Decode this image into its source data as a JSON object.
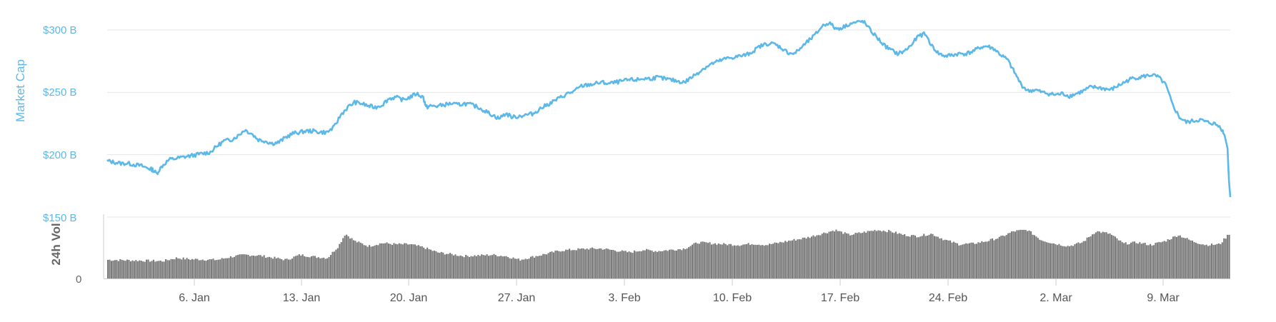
{
  "chart_data": [
    {
      "type": "line",
      "ylabel": "Market Cap",
      "y_ticks": [
        "$300 B",
        "$250 B",
        "$200 B",
        "$150 B"
      ],
      "y_tick_values": [
        300,
        250,
        200,
        150
      ],
      "ylim": [
        150,
        310
      ],
      "x_ticks": [
        "6. Jan",
        "13. Jan",
        "20. Jan",
        "27. Jan",
        "3. Feb",
        "10. Feb",
        "17. Feb",
        "24. Feb",
        "2. Mar",
        "9. Mar"
      ],
      "x_domain_days": [
        0,
        71
      ],
      "x_tick_days": [
        5,
        12,
        19,
        26,
        33,
        40,
        47,
        54,
        61,
        68
      ],
      "grid": true,
      "color": "#5bb8e8",
      "series": [
        {
          "points": [
            [
              0.0,
              195
            ],
            [
              0.5,
              194
            ],
            [
              1.0,
              193
            ],
            [
              1.5,
              193
            ],
            [
              2.0,
              192
            ],
            [
              2.5,
              191
            ],
            [
              3.0,
              189
            ],
            [
              3.3,
              188
            ],
            [
              3.6,
              185
            ],
            [
              4.0,
              191
            ],
            [
              4.5,
              196
            ],
            [
              5.0,
              197
            ],
            [
              5.5,
              198
            ],
            [
              6.0,
              199
            ],
            [
              6.5,
              200
            ],
            [
              7.0,
              201
            ],
            [
              7.5,
              202
            ],
            [
              8.0,
              207
            ],
            [
              8.5,
              211
            ],
            [
              9.0,
              212
            ],
            [
              9.5,
              215
            ],
            [
              10.0,
              220
            ],
            [
              10.5,
              217
            ],
            [
              11.0,
              212
            ],
            [
              11.5,
              211
            ],
            [
              12.0,
              209
            ],
            [
              12.5,
              210
            ],
            [
              13.0,
              214
            ],
            [
              13.5,
              217
            ],
            [
              14.0,
              218
            ],
            [
              14.5,
              219
            ],
            [
              15.0,
              219
            ],
            [
              15.5,
              218
            ],
            [
              16.0,
              218
            ],
            [
              16.5,
              222
            ],
            [
              17.0,
              232
            ],
            [
              17.5,
              238
            ],
            [
              18.0,
              242
            ],
            [
              18.5,
              241
            ],
            [
              19.0,
              239
            ],
            [
              19.5,
              238
            ],
            [
              20.0,
              240
            ],
            [
              20.5,
              245
            ],
            [
              21.0,
              246
            ],
            [
              21.5,
              244
            ],
            [
              22.0,
              246
            ],
            [
              22.5,
              249
            ],
            [
              23.0,
              246
            ],
            [
              23.2,
              238
            ],
            [
              23.5,
              239
            ],
            [
              24.0,
              239
            ],
            [
              24.5,
              240
            ],
            [
              25.0,
              241
            ],
            [
              25.5,
              240
            ],
            [
              26.0,
              241
            ],
            [
              26.5,
              240
            ],
            [
              27.0,
              238
            ],
            [
              27.5,
              235
            ],
            [
              28.0,
              232
            ],
            [
              28.5,
              229
            ],
            [
              29.0,
              233
            ],
            [
              29.5,
              230
            ],
            [
              30.0,
              231
            ],
            [
              30.5,
              232
            ],
            [
              31.0,
              233
            ],
            [
              31.5,
              237
            ],
            [
              32.0,
              240
            ],
            [
              32.5,
              243
            ],
            [
              33.0,
              246
            ],
            [
              33.5,
              249
            ],
            [
              34.0,
              251
            ],
            [
              34.5,
              255
            ],
            [
              35.0,
              256
            ],
            [
              35.5,
              257
            ],
            [
              36.0,
              258
            ],
            [
              36.5,
              257
            ],
            [
              37.0,
              258
            ],
            [
              37.5,
              259
            ],
            [
              38.0,
              260
            ],
            [
              38.5,
              260
            ],
            [
              39.0,
              261
            ],
            [
              39.5,
              261
            ],
            [
              40.0,
              262
            ],
            [
              40.5,
              261
            ],
            [
              41.0,
              260
            ],
            [
              41.5,
              259
            ],
            [
              42.0,
              258
            ],
            [
              42.5,
              262
            ],
            [
              43.0,
              266
            ],
            [
              43.5,
              270
            ],
            [
              44.0,
              273
            ],
            [
              44.5,
              275
            ],
            [
              45.0,
              277
            ],
            [
              45.5,
              278
            ],
            [
              46.0,
              279
            ],
            [
              46.5,
              280
            ],
            [
              47.0,
              283
            ],
            [
              47.5,
              287
            ],
            [
              48.0,
              289
            ],
            [
              48.5,
              289
            ],
            [
              49.0,
              286
            ],
            [
              49.5,
              282
            ],
            [
              50.0,
              281
            ],
            [
              50.5,
              286
            ],
            [
              51.0,
              291
            ],
            [
              51.5,
              296
            ],
            [
              52.0,
              303
            ],
            [
              52.5,
              306
            ],
            [
              53.0,
              301
            ],
            [
              53.5,
              302
            ],
            [
              54.0,
              305
            ],
            [
              54.5,
              306
            ],
            [
              55.0,
              307
            ],
            [
              55.5,
              300
            ],
            [
              56.0,
              294
            ],
            [
              56.5,
              288
            ],
            [
              57.0,
              284
            ],
            [
              57.5,
              281
            ],
            [
              58.0,
              283
            ],
            [
              58.5,
              288
            ],
            [
              59.0,
              295
            ],
            [
              59.5,
              297
            ],
            [
              60.0,
              287
            ],
            [
              60.5,
              281
            ],
            [
              61.0,
              279
            ],
            [
              61.5,
              280
            ],
            [
              62.0,
              281
            ],
            [
              62.5,
              281
            ],
            [
              63.0,
              283
            ],
            [
              63.5,
              286
            ],
            [
              64.0,
              287
            ],
            [
              64.5,
              285
            ],
            [
              65.0,
              280
            ],
            [
              65.5,
              276
            ],
            [
              66.0,
              266
            ],
            [
              66.5,
              256
            ],
            [
              67.0,
              251
            ],
            [
              67.5,
              252
            ],
            [
              68.0,
              250
            ],
            [
              68.5,
              249
            ],
            [
              69.0,
              248
            ],
            [
              69.5,
              249
            ],
            [
              70.0,
              247
            ],
            [
              70.5,
              249
            ],
            [
              71.0,
              251
            ],
            [
              71.5,
              254
            ],
            [
              72.0,
              254
            ],
            [
              72.5,
              253
            ],
            [
              73.0,
              252
            ],
            [
              73.5,
              255
            ],
            [
              74.0,
              258
            ],
            [
              74.5,
              261
            ],
            [
              75.0,
              262
            ],
            [
              75.5,
              263
            ],
            [
              76.0,
              264
            ],
            [
              76.5,
              262
            ],
            [
              77.0,
              256
            ],
            [
              77.5,
              240
            ],
            [
              78.0,
              230
            ],
            [
              78.5,
              226
            ],
            [
              79.0,
              227
            ],
            [
              79.5,
              228
            ],
            [
              80.0,
              226
            ],
            [
              80.5,
              225
            ],
            [
              81.0,
              222
            ],
            [
              81.3,
              215
            ],
            [
              81.5,
              205
            ],
            [
              81.6,
              180
            ],
            [
              81.7,
              166
            ]
          ]
        }
      ]
    },
    {
      "type": "bar",
      "ylabel": "24h Vol",
      "y_ticks": [
        "0"
      ],
      "color": "#7a7a7a",
      "volume_profile": [
        [
          0,
          0.3
        ],
        [
          4,
          0.28
        ],
        [
          5,
          0.33
        ],
        [
          6,
          0.31
        ],
        [
          8,
          0.3
        ],
        [
          9,
          0.35
        ],
        [
          10,
          0.38
        ],
        [
          11,
          0.37
        ],
        [
          13,
          0.3
        ],
        [
          14,
          0.38
        ],
        [
          15,
          0.35
        ],
        [
          16,
          0.33
        ],
        [
          16.8,
          0.52
        ],
        [
          17.3,
          0.72
        ],
        [
          18,
          0.6
        ],
        [
          19,
          0.52
        ],
        [
          20,
          0.57
        ],
        [
          21,
          0.55
        ],
        [
          22,
          0.55
        ],
        [
          23,
          0.5
        ],
        [
          24,
          0.42
        ],
        [
          26,
          0.36
        ],
        [
          28,
          0.38
        ],
        [
          29,
          0.36
        ],
        [
          30,
          0.3
        ],
        [
          31,
          0.35
        ],
        [
          33,
          0.45
        ],
        [
          35,
          0.48
        ],
        [
          36,
          0.48
        ],
        [
          37,
          0.45
        ],
        [
          38,
          0.42
        ],
        [
          39,
          0.46
        ],
        [
          40,
          0.44
        ],
        [
          42,
          0.48
        ],
        [
          43,
          0.58
        ],
        [
          45,
          0.55
        ],
        [
          46,
          0.54
        ],
        [
          47,
          0.56
        ],
        [
          48,
          0.54
        ],
        [
          49,
          0.58
        ],
        [
          51,
          0.66
        ],
        [
          52,
          0.72
        ],
        [
          53,
          0.78
        ],
        [
          54,
          0.7
        ],
        [
          55,
          0.74
        ],
        [
          56,
          0.78
        ],
        [
          57,
          0.76
        ],
        [
          58,
          0.7
        ],
        [
          59,
          0.68
        ],
        [
          60,
          0.72
        ],
        [
          61,
          0.62
        ],
        [
          62,
          0.55
        ],
        [
          63,
          0.56
        ],
        [
          64,
          0.6
        ],
        [
          65,
          0.66
        ],
        [
          66,
          0.76
        ],
        [
          67,
          0.78
        ],
        [
          68,
          0.62
        ],
        [
          69,
          0.56
        ],
        [
          70,
          0.52
        ],
        [
          71,
          0.58
        ],
        [
          72,
          0.76
        ],
        [
          73,
          0.72
        ],
        [
          74,
          0.56
        ],
        [
          75,
          0.58
        ],
        [
          76,
          0.54
        ],
        [
          77,
          0.6
        ],
        [
          78,
          0.7
        ],
        [
          79,
          0.6
        ],
        [
          80,
          0.54
        ],
        [
          81,
          0.55
        ],
        [
          81.7,
          0.72
        ]
      ]
    }
  ]
}
